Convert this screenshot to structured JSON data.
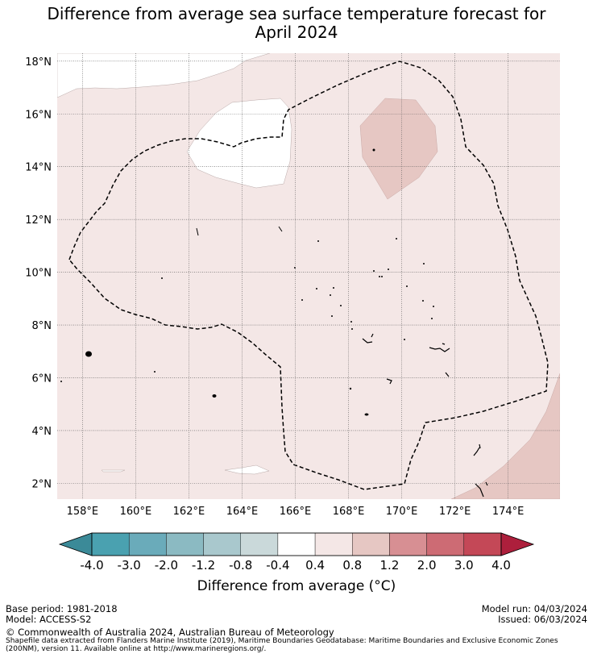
{
  "title_line1": "Difference from average sea surface temperature forecast for",
  "title_line2": "April 2024",
  "map": {
    "lat_labels": [
      "18°N",
      "16°N",
      "14°N",
      "12°N",
      "10°N",
      "8°N",
      "6°N",
      "4°N",
      "2°N"
    ],
    "lon_labels": [
      "158°E",
      "160°E",
      "162°E",
      "164°E",
      "166°E",
      "168°E",
      "170°E",
      "172°E",
      "174°E"
    ],
    "lat_values": [
      18,
      16,
      14,
      12,
      10,
      8,
      6,
      4,
      2
    ],
    "lon_values": [
      158,
      160,
      162,
      164,
      166,
      168,
      170,
      172,
      174
    ],
    "extent": {
      "lon_min": 157.05,
      "lon_max": 175.95,
      "lat_min": 1.4,
      "lat_max": 18.3
    },
    "colors": {
      "background_class": "#f4e7e6",
      "warm_class": "#e6c7c3",
      "neutral_class": "#ffffff",
      "eez_line": "#000000",
      "grid_line": "#555555"
    },
    "fill_classes": [
      "0.4 to 0.8",
      "0.8 to 1.2",
      "-0.4 to 0.4"
    ]
  },
  "colorbar": {
    "labels": [
      "-4.0",
      "-3.0",
      "-2.0",
      "-1.2",
      "-0.8",
      "-0.4",
      "0.4",
      "0.8",
      "1.2",
      "2.0",
      "3.0",
      "4.0"
    ],
    "colors": [
      "#4aa1b0",
      "#6aabba",
      "#8bbac2",
      "#a9c8cd",
      "#cad9da",
      "#ffffff",
      "#f4e7e6",
      "#e6c7c3",
      "#d78f93",
      "#cd6b74",
      "#c44857"
    ],
    "under_color": "#3b8a98",
    "over_color": "#ad1f3c",
    "title": "Difference from average (°C)"
  },
  "footer": {
    "base_period": "Base period: 1981-2018",
    "model": "Model: ACCESS-S2",
    "model_run": "Model run: 04/03/2024",
    "issued": "Issued: 06/03/2024",
    "copyright": "© Commonwealth of Australia 2024, Australian Bureau of Meteorology",
    "shapefile_line1": "Shapefile data extracted from Flanders Marine Institute (2019), Maritime Boundaries Geodatabase: Maritime Boundaries and Exclusive Economic Zones",
    "shapefile_line2": "(200NM), version 11. Available online at http://www.marineregions.org/."
  }
}
